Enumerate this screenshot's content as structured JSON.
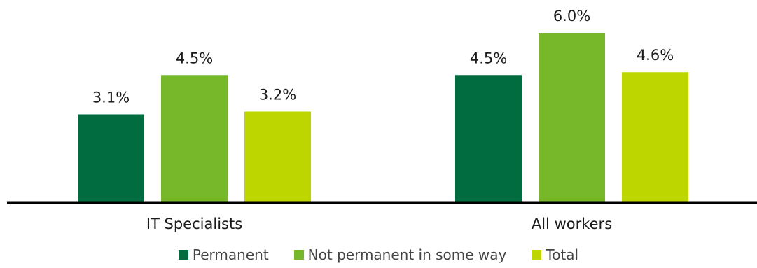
{
  "chart_data": {
    "type": "bar",
    "categories": [
      "IT Specialists",
      "All workers"
    ],
    "series": [
      {
        "name": "Permanent",
        "values": [
          3.1,
          4.5
        ],
        "labels": [
          "3.1%",
          "4.5%"
        ],
        "color": "#016c3f"
      },
      {
        "name": "Not permanent in some way",
        "values": [
          4.5,
          6.0
        ],
        "labels": [
          "4.5%",
          "6.0%"
        ],
        "color": "#76b82a"
      },
      {
        "name": "Total",
        "values": [
          3.2,
          4.6
        ],
        "labels": [
          "3.2%",
          "4.6%"
        ],
        "color": "#bed600"
      }
    ],
    "ylim": [
      0,
      6.0
    ],
    "grid": false,
    "legend_position": "bottom"
  }
}
